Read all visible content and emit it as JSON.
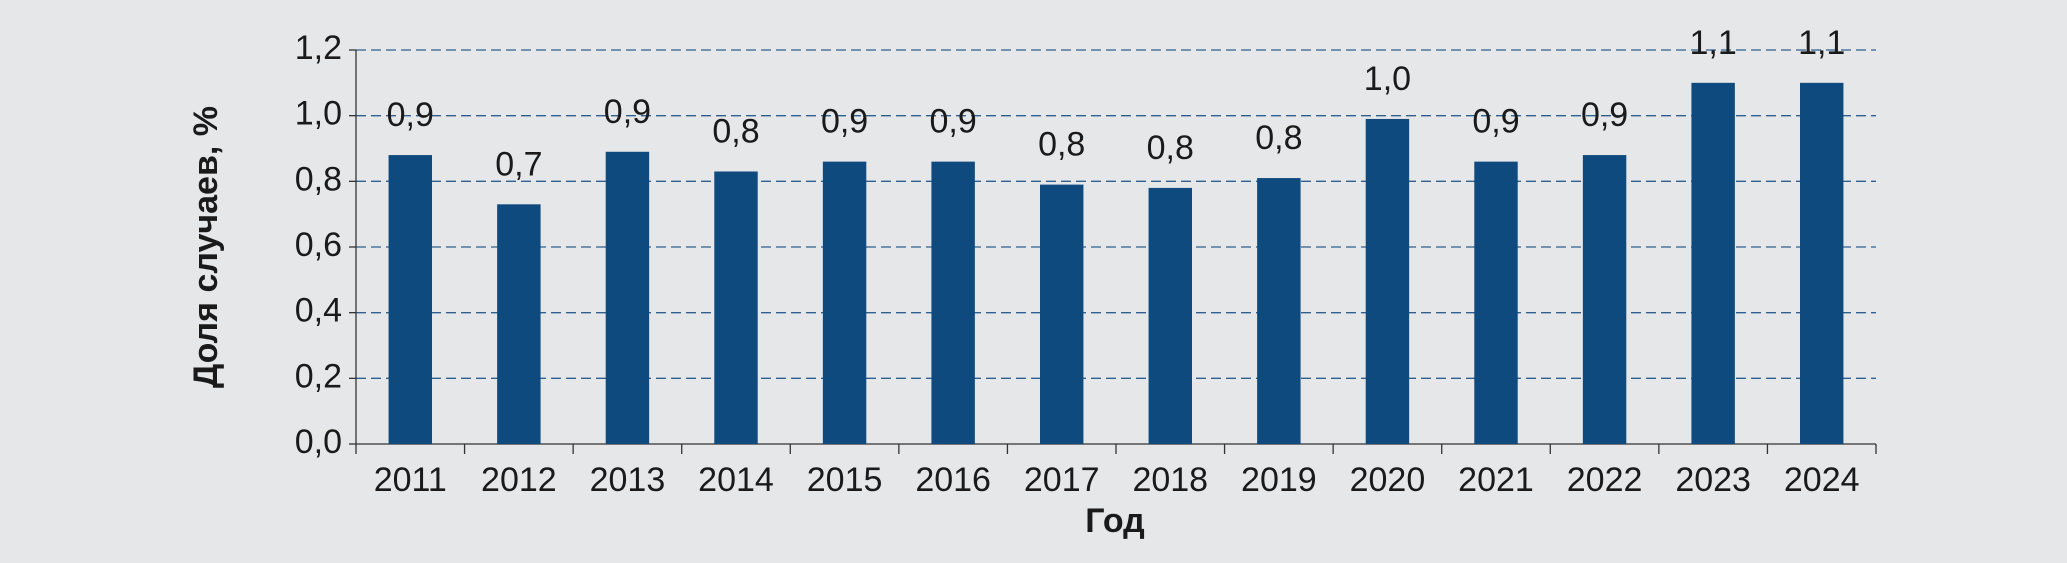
{
  "chart_data": {
    "type": "bar",
    "categories": [
      "2011",
      "2012",
      "2013",
      "2014",
      "2015",
      "2016",
      "2017",
      "2018",
      "2019",
      "2020",
      "2021",
      "2022",
      "2023",
      "2024"
    ],
    "values": [
      0.88,
      0.73,
      0.89,
      0.83,
      0.86,
      0.86,
      0.79,
      0.78,
      0.81,
      0.99,
      0.86,
      0.88,
      1.1,
      1.1
    ],
    "value_labels": [
      "0,9",
      "0,7",
      "0,9",
      "0,8",
      "0,9",
      "0,9",
      "0,8",
      "0,8",
      "0,8",
      "1,0",
      "0,9",
      "0,9",
      "1,1",
      "1,1"
    ],
    "color": "#0f4a7e",
    "x_label": "Год",
    "y_label": "Доля случаев, %",
    "ylim": [
      0,
      1.2
    ],
    "yticks": [
      {
        "value": 0,
        "label": "0,0"
      },
      {
        "value": 0.2,
        "label": "0,2"
      },
      {
        "value": 0.4,
        "label": "0,4"
      },
      {
        "value": 0.6,
        "label": "0,6"
      },
      {
        "value": 0.8,
        "label": "0,8"
      },
      {
        "value": 1.0,
        "label": "1,0"
      },
      {
        "value": 1.2,
        "label": "1,2"
      }
    ],
    "grid": true
  }
}
